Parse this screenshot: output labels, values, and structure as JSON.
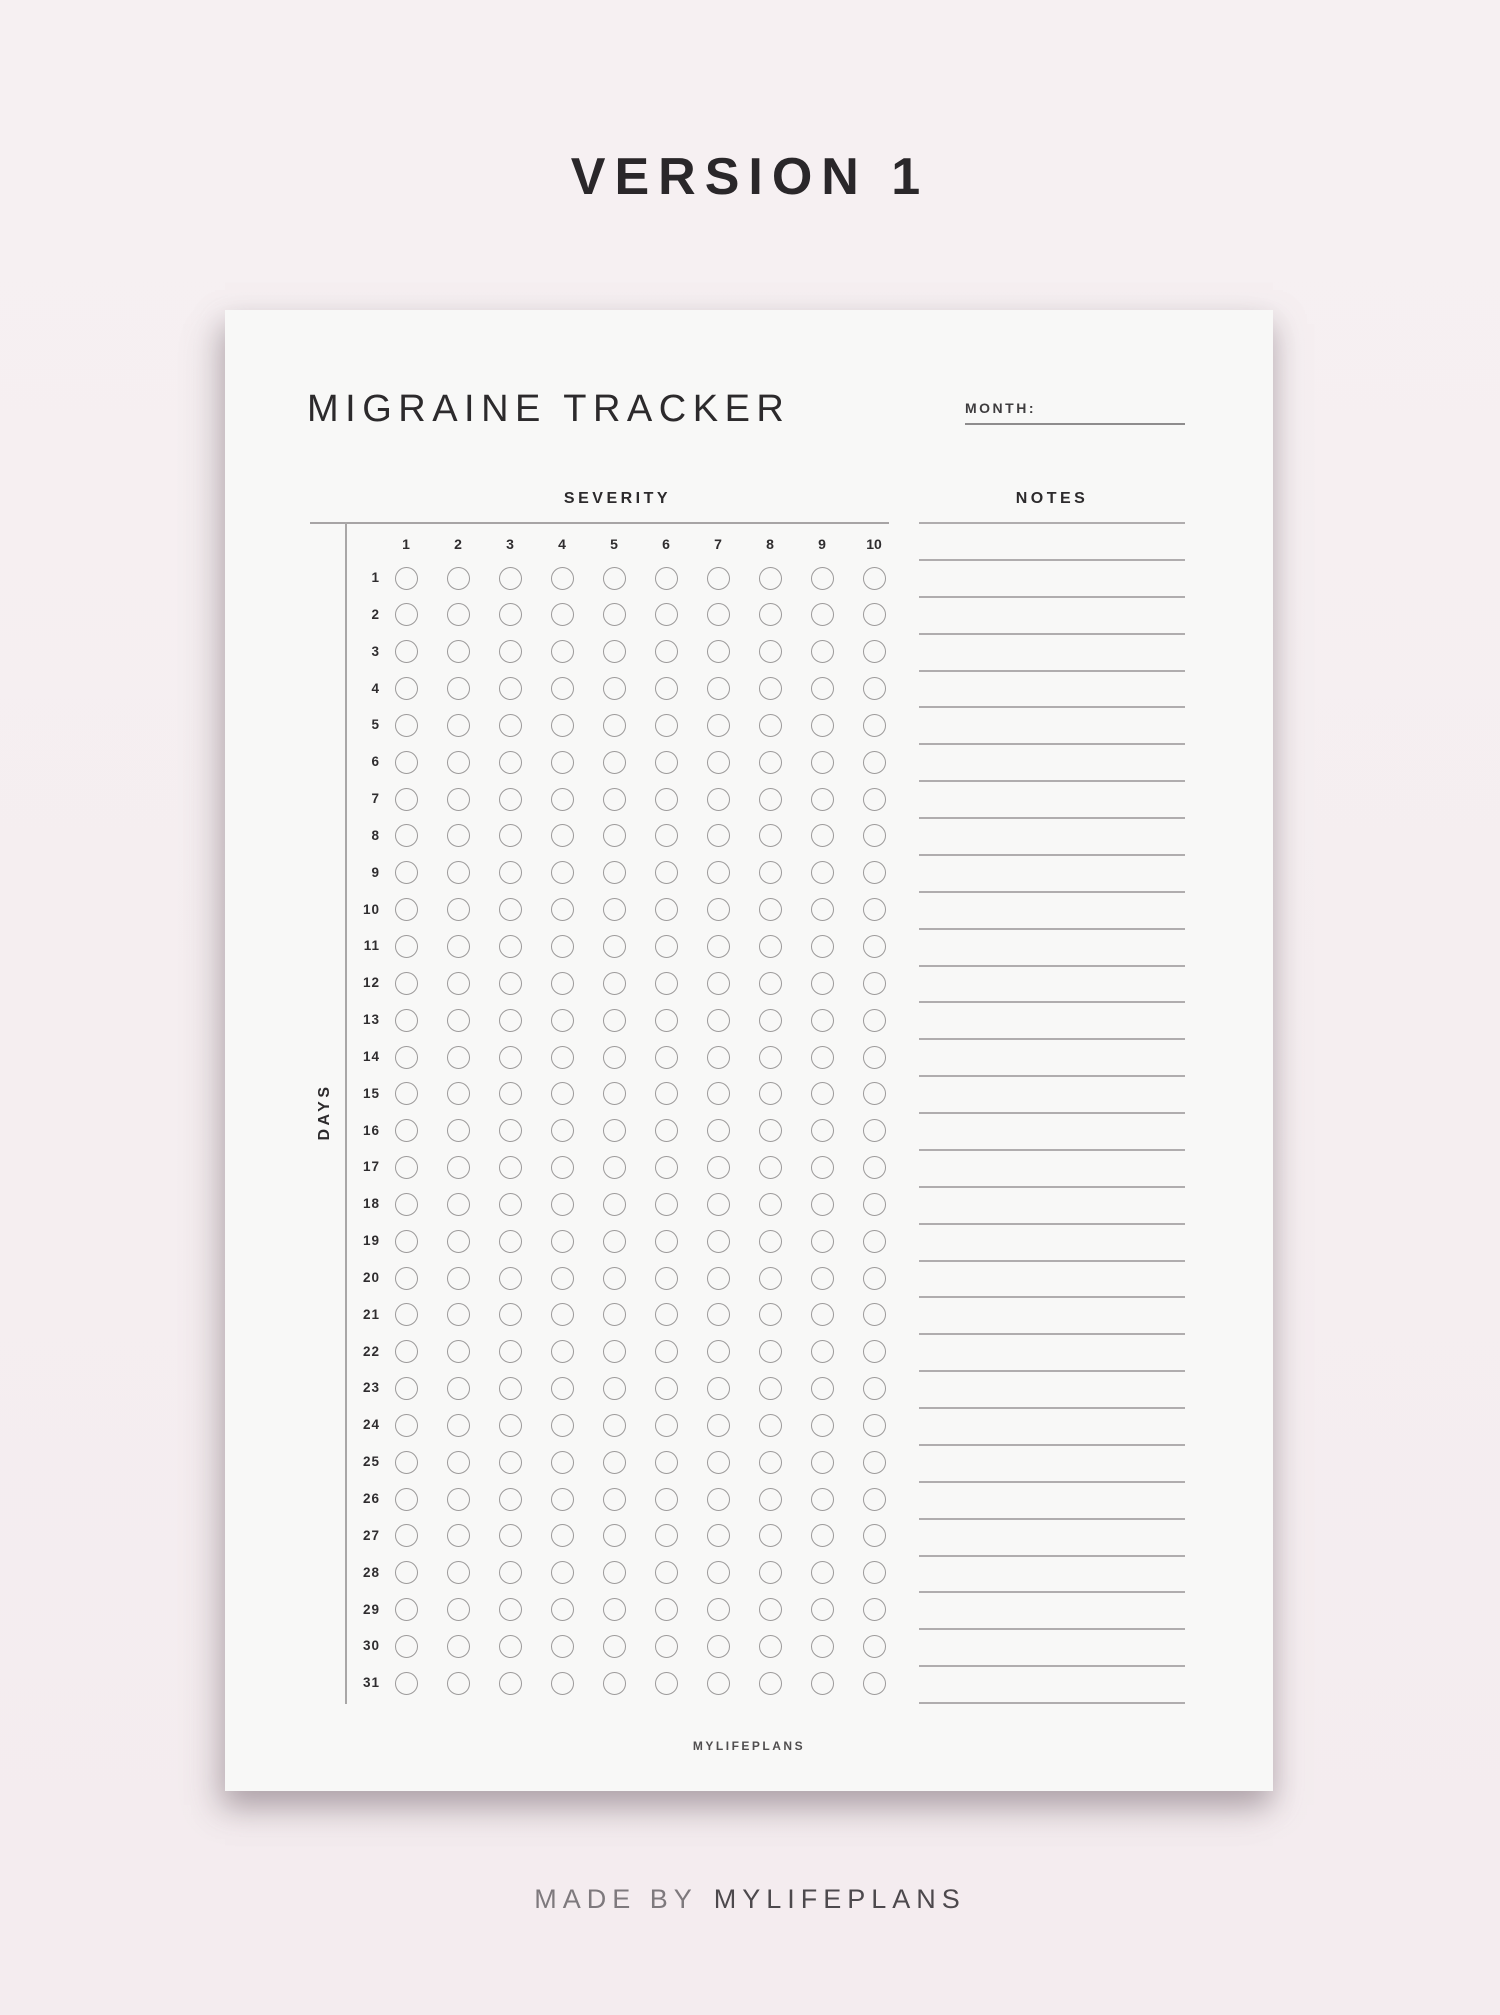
{
  "heading": {
    "version_label": "VERSION 1"
  },
  "page": {
    "title": "MIGRAINE TRACKER",
    "month_label": "MONTH:",
    "month_value": "",
    "severity_heading": "SEVERITY",
    "notes_heading": "NOTES",
    "days_axis_label": "DAYS",
    "footer_brand": "MYLIFEPLANS",
    "grid": {
      "severity_scale": [
        "1",
        "2",
        "3",
        "4",
        "5",
        "6",
        "7",
        "8",
        "9",
        "10"
      ],
      "day_labels": [
        "1",
        "2",
        "3",
        "4",
        "5",
        "6",
        "7",
        "8",
        "9",
        "10",
        "11",
        "12",
        "13",
        "14",
        "15",
        "16",
        "17",
        "18",
        "19",
        "20",
        "21",
        "22",
        "23",
        "24",
        "25",
        "26",
        "27",
        "28",
        "29",
        "30",
        "31"
      ],
      "notes_line_count": 33
    }
  },
  "caption": {
    "made_by_prefix": "MADE BY",
    "made_by_brand": "MYLIFEPLANS"
  },
  "colors": {
    "background": "#f5eef0",
    "paper": "#f8f8f7",
    "ink": "#2c2a2c",
    "rule_gray": "#a9a7a7",
    "circle_stroke": "#9c9a9a"
  }
}
